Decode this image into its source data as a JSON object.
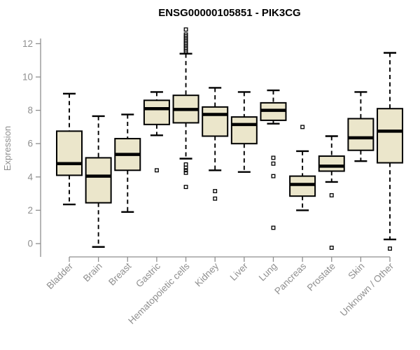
{
  "chart_data": {
    "type": "boxplot",
    "title": "ENSG00000105851 - PIK3CG",
    "xlabel": "",
    "ylabel": "Expression",
    "ylim": [
      -0.5,
      13.2
    ],
    "yticks": [
      0,
      2,
      4,
      6,
      8,
      10,
      12
    ],
    "grid": false,
    "legend": "none",
    "categories": [
      "Bladder",
      "Brain",
      "Breast",
      "Gastric",
      "Hematopoietic cells",
      "Kidney",
      "Liver",
      "Lung",
      "Pancreas",
      "Prostate",
      "Skin",
      "Unknown / Other"
    ],
    "series": [
      {
        "name": "Bladder",
        "low": 2.35,
        "q1": 4.1,
        "median": 4.8,
        "q3": 6.75,
        "high": 9.0,
        "outliers": []
      },
      {
        "name": "Brain",
        "low": -0.2,
        "q1": 2.45,
        "median": 4.05,
        "q3": 5.15,
        "high": 7.65,
        "outliers": []
      },
      {
        "name": "Breast",
        "low": 1.9,
        "q1": 4.4,
        "median": 5.35,
        "q3": 6.3,
        "high": 7.75,
        "outliers": []
      },
      {
        "name": "Gastric",
        "low": 6.5,
        "q1": 7.15,
        "median": 8.1,
        "q3": 8.6,
        "high": 9.1,
        "outliers": [
          4.4
        ]
      },
      {
        "name": "Hematopoietic cells",
        "low": 5.1,
        "q1": 7.25,
        "median": 8.05,
        "q3": 8.9,
        "high": 11.4,
        "outliers": [
          12.85,
          12.55,
          12.45,
          12.35,
          12.25,
          12.15,
          12.05,
          11.95,
          11.85,
          11.75,
          11.65,
          11.55,
          4.75,
          4.55,
          4.4,
          4.25,
          3.4
        ]
      },
      {
        "name": "Kidney",
        "low": 4.4,
        "q1": 6.45,
        "median": 7.75,
        "q3": 8.2,
        "high": 9.35,
        "outliers": [
          3.15,
          2.7
        ]
      },
      {
        "name": "Liver",
        "low": 4.3,
        "q1": 6.0,
        "median": 7.15,
        "q3": 7.6,
        "high": 9.1,
        "outliers": []
      },
      {
        "name": "Lung",
        "low": 7.2,
        "q1": 7.4,
        "median": 8.0,
        "q3": 8.45,
        "high": 9.2,
        "outliers": [
          5.15,
          4.8,
          4.05,
          0.95
        ]
      },
      {
        "name": "Pancreas",
        "low": 2.0,
        "q1": 2.85,
        "median": 3.55,
        "q3": 4.05,
        "high": 5.55,
        "outliers": [
          7.0
        ]
      },
      {
        "name": "Prostate",
        "low": 3.7,
        "q1": 4.35,
        "median": 4.65,
        "q3": 5.25,
        "high": 6.45,
        "outliers": [
          2.9,
          -0.25
        ]
      },
      {
        "name": "Skin",
        "low": 4.95,
        "q1": 5.6,
        "median": 6.35,
        "q3": 7.5,
        "high": 9.1,
        "outliers": []
      },
      {
        "name": "Unknown / Other",
        "low": 0.25,
        "q1": 4.85,
        "median": 6.75,
        "q3": 8.1,
        "high": 11.45,
        "outliers": [
          -0.3
        ]
      }
    ]
  },
  "colors": {
    "box_fill": "#ebe6cb",
    "box_stroke": "#000000",
    "axis": "#8f8f8f",
    "label": "#8f8f8f",
    "title": "#000000",
    "background": "#ffffff"
  }
}
